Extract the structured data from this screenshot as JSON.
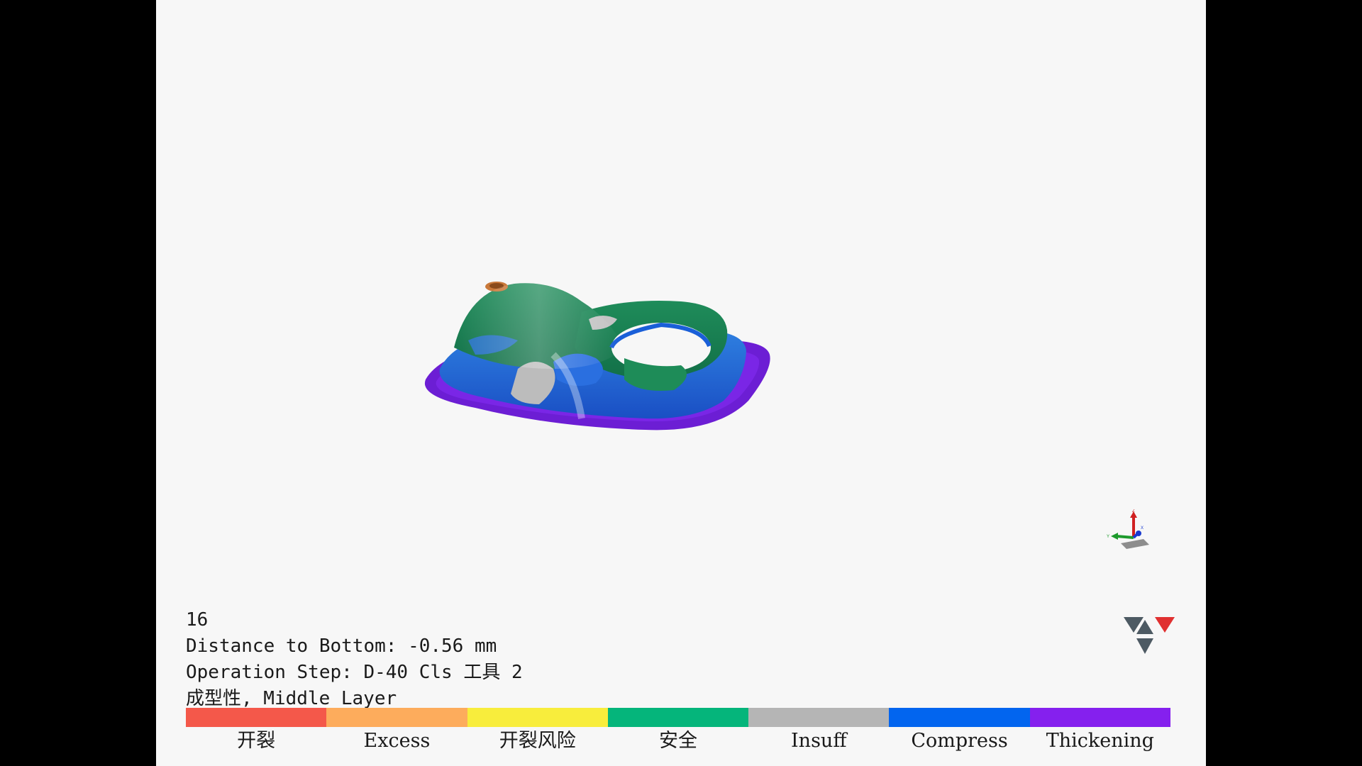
{
  "info": {
    "frame": "16",
    "distance": "Distance to Bottom: -0.56 mm",
    "operation": "Operation Step: D-40 Cls 工具 2",
    "result": "成型性, Middle Layer"
  },
  "legend": [
    {
      "label": "开裂",
      "color": "#f4584a"
    },
    {
      "label": "Excess",
      "color": "#fdac5c"
    },
    {
      "label": "开裂风险",
      "color": "#f8ed3c"
    },
    {
      "label": "安全",
      "color": "#05b57b"
    },
    {
      "label": "Insuff",
      "color": "#b5b5b5"
    },
    {
      "label": "Compress",
      "color": "#0265ef"
    },
    {
      "label": "Thickening",
      "color": "#8520ee"
    }
  ],
  "icons": {
    "part": "formed-part-3d-model",
    "triad": "xyz-axis-triad-icon",
    "viewcube": "view-orientation-cube-icon"
  },
  "axis_labels": {
    "x": "X",
    "y": "Y",
    "z": "Z"
  }
}
